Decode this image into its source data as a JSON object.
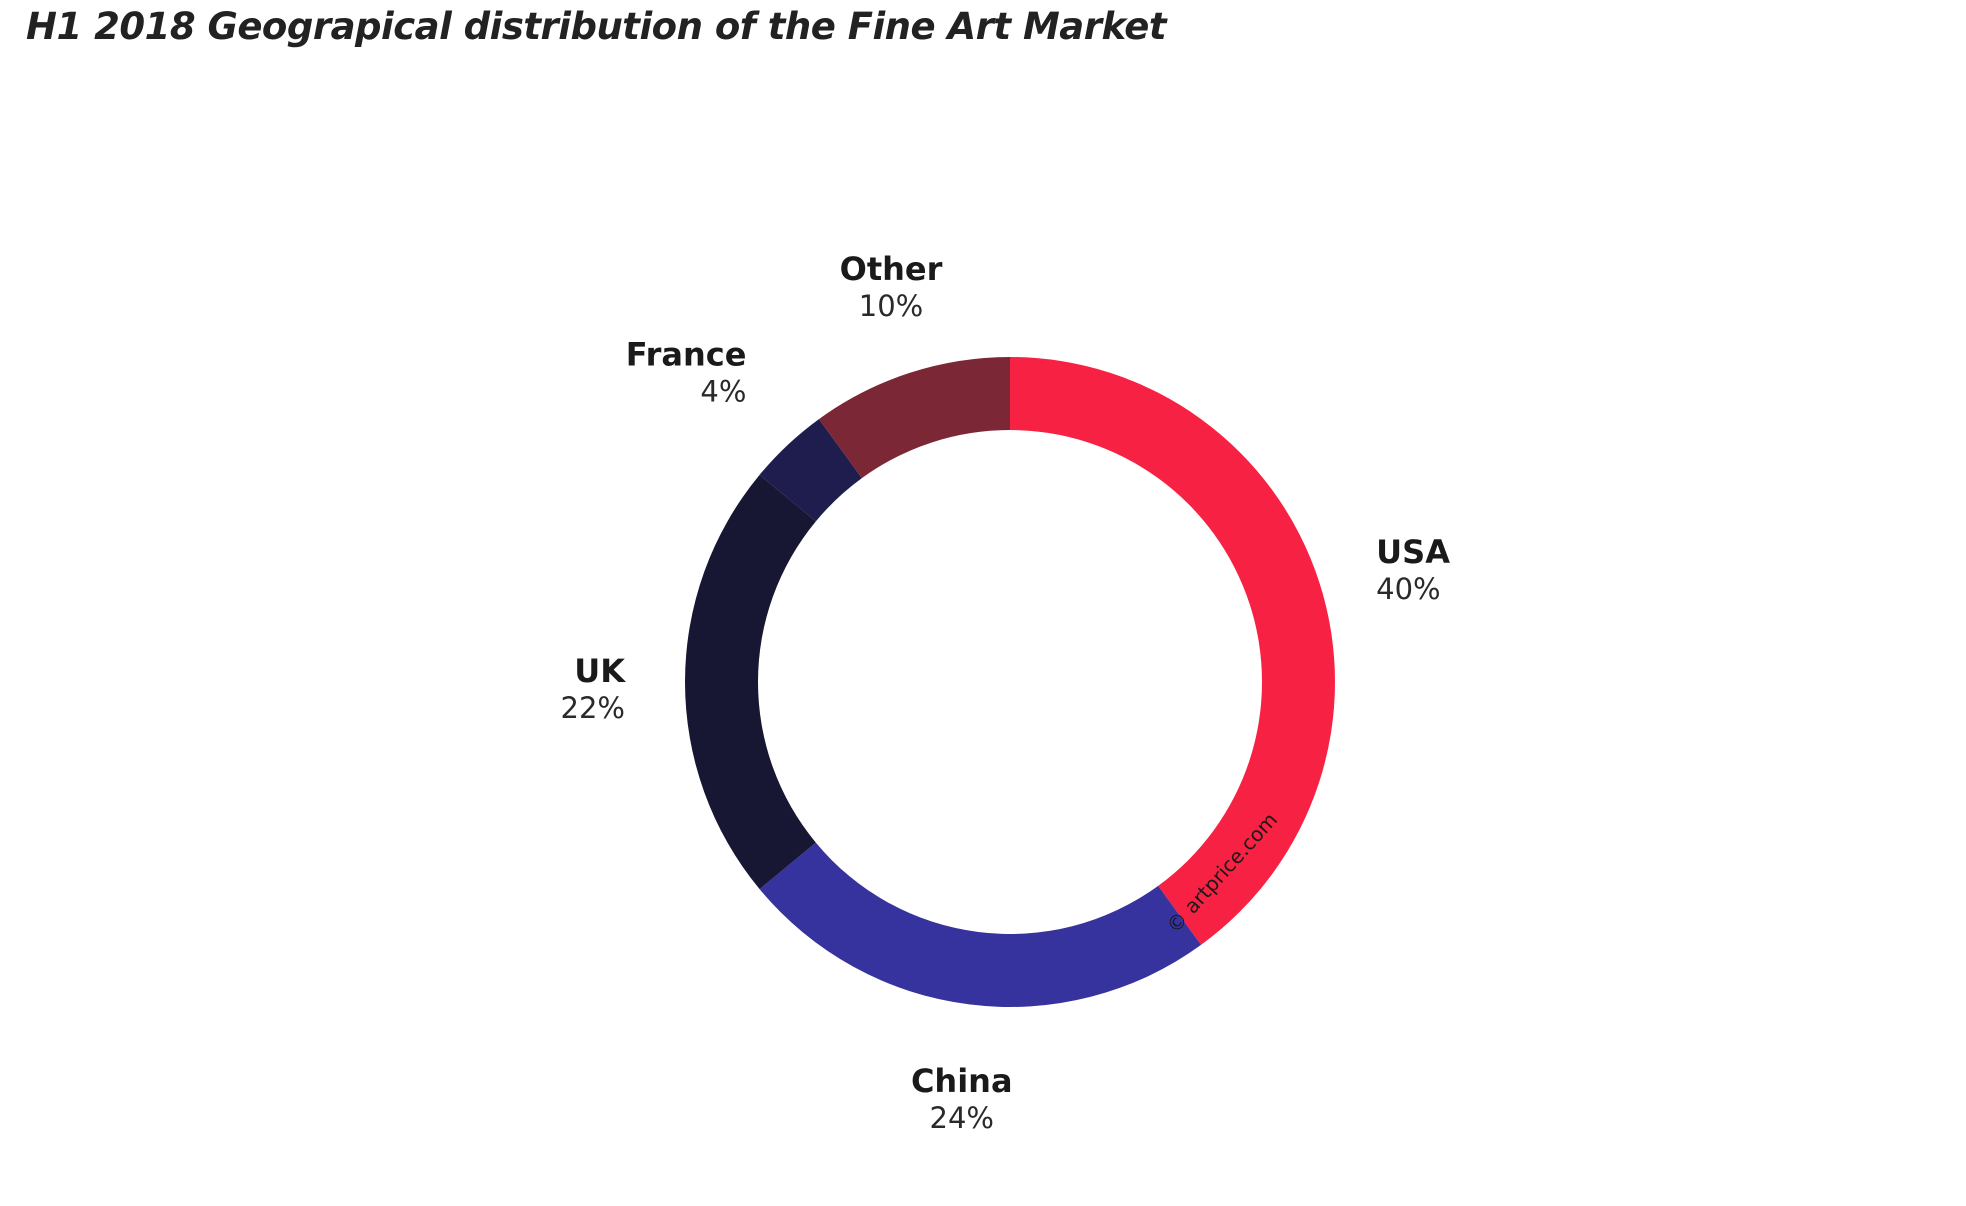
{
  "chart_data": {
    "type": "pie",
    "style": "donut",
    "title": "H1 2018 Geograpical distribution of the Fine Art Market",
    "unit": "%",
    "slices": [
      {
        "label": "USA",
        "value": 40,
        "value_label": "40%",
        "color": "#f72243"
      },
      {
        "label": "China",
        "value": 24,
        "value_label": "24%",
        "color": "#36329e"
      },
      {
        "label": "UK",
        "value": 22,
        "value_label": "22%",
        "color": "#181733"
      },
      {
        "label": "France",
        "value": 4,
        "value_label": "4%",
        "color": "#1f1d4d"
      },
      {
        "label": "Other",
        "value": 10,
        "value_label": "10%",
        "color": "#7b2735"
      }
    ],
    "start_angle_deg": 0,
    "direction": "clockwise",
    "watermark": "© artprice.com"
  }
}
